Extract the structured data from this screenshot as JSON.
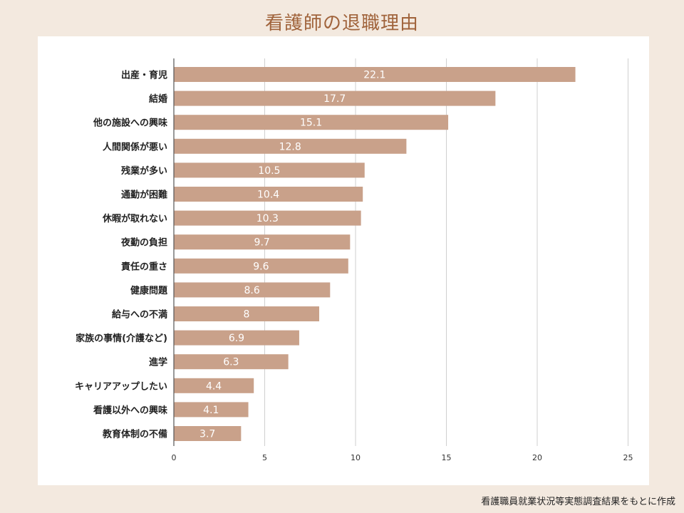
{
  "title": "看護師の退職理由",
  "source": "看護職員就業状況等実態調査結果をもとに作成",
  "colors": {
    "background": "#f3e9df",
    "panel": "#ffffff",
    "bar": "#c9a18a",
    "title": "#a0633b",
    "grid": "#cfcfcf"
  },
  "chart_data": {
    "type": "bar",
    "orientation": "horizontal",
    "title": "看護師の退職理由",
    "categories": [
      "出産・育児",
      "結婚",
      "他の施設への興味",
      "人間関係が悪い",
      "残業が多い",
      "通勤が困難",
      "休暇が取れない",
      "夜勤の負担",
      "責任の重さ",
      "健康問題",
      "給与への不満",
      "家族の事情(介護など)",
      "進学",
      "キャリアアップしたい",
      "看護以外への興味",
      "教育体制の不備"
    ],
    "values": [
      22.1,
      17.7,
      15.1,
      12.8,
      10.5,
      10.4,
      10.3,
      9.7,
      9.6,
      8.6,
      8,
      6.9,
      6.3,
      4.4,
      4.1,
      3.7
    ],
    "value_labels": [
      "22.1",
      "17.7",
      "15.1",
      "12.8",
      "10.5",
      "10.4",
      "10.3",
      "9.7",
      "9.6",
      "8.6",
      "8",
      "6.9",
      "6.3",
      "4.4",
      "4.1",
      "3.7"
    ],
    "xlim": [
      0,
      25
    ],
    "xticks": [
      0,
      5,
      10,
      15,
      20,
      25
    ],
    "xtick_labels": [
      "0",
      "5",
      "10",
      "15",
      "20",
      "25"
    ],
    "grid": true
  }
}
